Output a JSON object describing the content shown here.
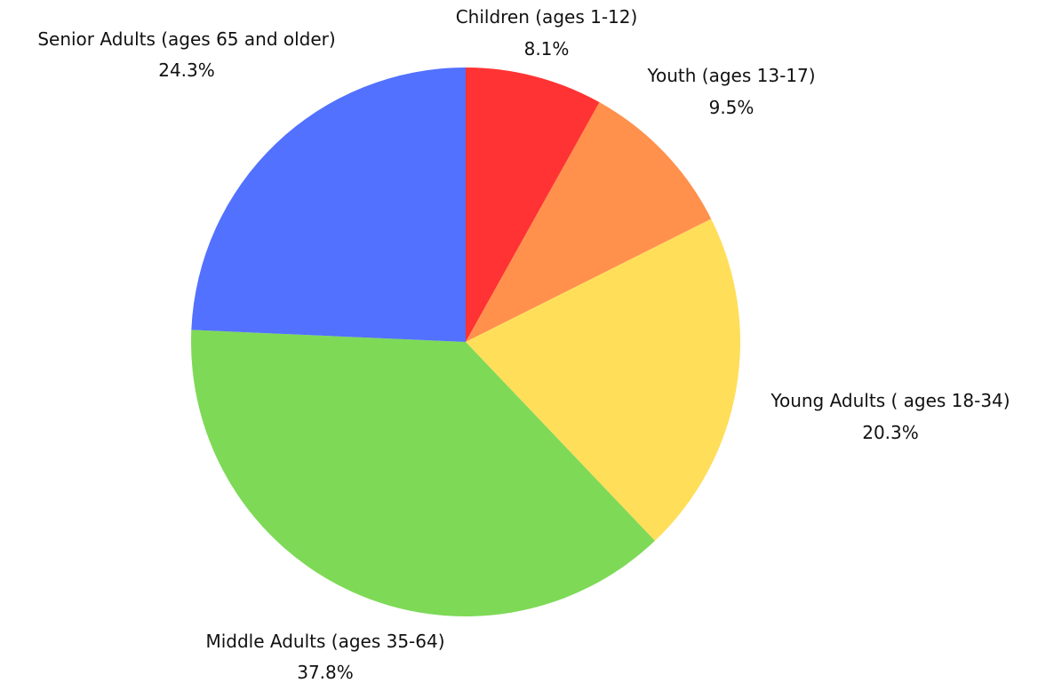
{
  "chart_data": {
    "type": "pie",
    "title": "",
    "start_angle": "12 o'clock",
    "direction": "clockwise",
    "slices": [
      {
        "label": "Children (ages 1-12)",
        "value": 8.1,
        "value_label": "8.1%",
        "color": "#FF3333"
      },
      {
        "label": "Youth (ages 13-17)",
        "value": 9.5,
        "value_label": "9.5%",
        "color": "#FF914D"
      },
      {
        "label": "Young Adults ( ages 18-34)",
        "value": 20.3,
        "value_label": "20.3%",
        "color": "#FFDE59"
      },
      {
        "label": "Middle Adults (ages 35-64)",
        "value": 37.8,
        "value_label": "37.8%",
        "color": "#7ED957"
      },
      {
        "label": "Senior Adults (ages 65 and older)",
        "value": 24.3,
        "value_label": "24.3%",
        "color": "#5271FF"
      }
    ]
  }
}
